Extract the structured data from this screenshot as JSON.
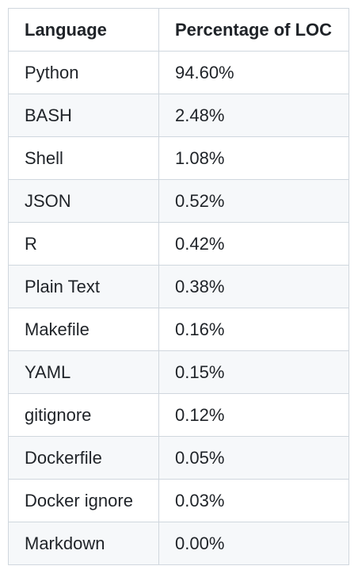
{
  "table": {
    "headers": [
      "Language",
      "Percentage of LOC"
    ],
    "rows": [
      [
        "Python",
        "94.60%"
      ],
      [
        "BASH",
        "2.48%"
      ],
      [
        "Shell",
        "1.08%"
      ],
      [
        "JSON",
        "0.52%"
      ],
      [
        "R",
        "0.42%"
      ],
      [
        "Plain Text",
        "0.38%"
      ],
      [
        "Makefile",
        "0.16%"
      ],
      [
        "YAML",
        "0.15%"
      ],
      [
        "gitignore",
        "0.12%"
      ],
      [
        "Dockerfile",
        "0.05%"
      ],
      [
        "Docker ignore",
        "0.03%"
      ],
      [
        "Markdown",
        "0.00%"
      ]
    ]
  },
  "colors": {
    "border": "#d0d7de",
    "stripe": "#f6f8fa",
    "text": "#1f2328"
  }
}
